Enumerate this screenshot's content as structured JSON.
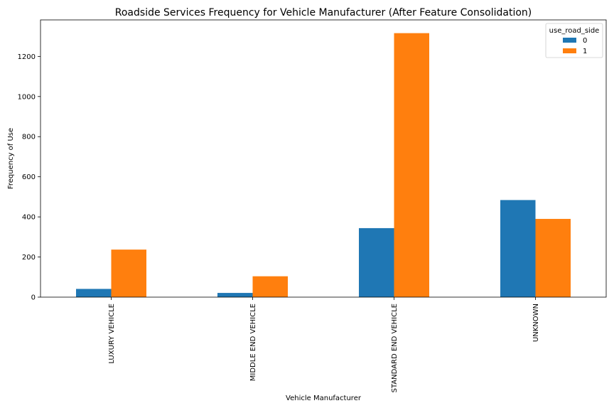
{
  "chart_data": {
    "type": "bar",
    "title": "Roadside Services Frequency for Vehicle Manufacturer (After Feature Consolidation)",
    "xlabel": "Vehicle Manufacturer",
    "ylabel": "Frequency of Use",
    "categories": [
      "LUXURY VEHICLE",
      "MIDDLE END VEHICLE",
      "STANDARD END VEHICLE",
      "UNKNOWN"
    ],
    "series": [
      {
        "name": "0",
        "color": "#1f77b4",
        "values": [
          41,
          21,
          344,
          484
        ]
      },
      {
        "name": "1",
        "color": "#ff7f0e",
        "values": [
          237,
          104,
          1316,
          390
        ]
      }
    ],
    "ylim": [
      0,
      1382
    ],
    "yticks": [
      0,
      200,
      400,
      600,
      800,
      1000,
      1200
    ],
    "legend": {
      "title": "use_road_side",
      "placement": "top-right"
    },
    "grid": false
  }
}
